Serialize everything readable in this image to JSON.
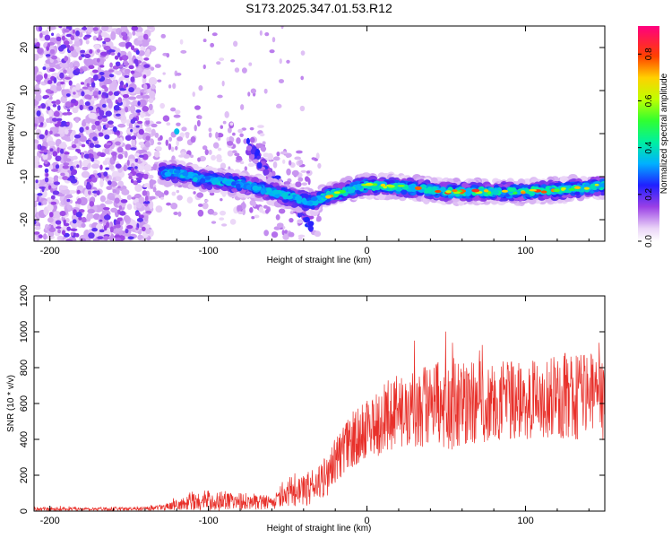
{
  "title": "S173.2025.347.01.53.R12",
  "chart_data": [
    {
      "type": "heatmap",
      "name": "spectrogram",
      "xlabel": "Height of straight line (km)",
      "ylabel": "Frequency (Hz)",
      "xlim": [
        -210,
        150
      ],
      "ylim": [
        -25,
        25
      ],
      "xticks": [
        -200,
        -100,
        0,
        100
      ],
      "yticks": [
        -20,
        -10,
        0,
        10,
        20
      ],
      "ridge": {
        "description_points_x": [
          -125,
          -115,
          -105,
          -95,
          -85,
          -75,
          -65,
          -55,
          -45,
          -35,
          -25,
          -10,
          0,
          25,
          50,
          75,
          100,
          125,
          150
        ],
        "frequency_hz": [
          -9,
          -9.5,
          -10.5,
          -11,
          -11.5,
          -12,
          -13,
          -14,
          -15,
          -16,
          -14.5,
          -13,
          -12,
          -12.5,
          -13.5,
          -13.5,
          -13.5,
          -13,
          -12
        ]
      },
      "colorbar": {
        "label": "Normalized spectral amplitude",
        "range": [
          0.0,
          0.92
        ],
        "ticks": [
          0.0,
          0.2,
          0.4,
          0.6,
          0.8
        ],
        "tick_labels": [
          "0.0",
          "0.2",
          "0.4",
          "0.6",
          "0.8"
        ],
        "colors": [
          "#ffffff",
          "#e6c8f5",
          "#8a2be2",
          "#0000ff",
          "#00c8ff",
          "#00ff80",
          "#80ff00",
          "#ffff00",
          "#ff8000",
          "#ff0000",
          "#ff0080"
        ]
      }
    },
    {
      "type": "line",
      "name": "snr",
      "xlabel": "Height of straight line (km)",
      "ylabel": "SNR (10 * v/v)",
      "xlim": [
        -210,
        150
      ],
      "ylim": [
        0,
        1200
      ],
      "xticks": [
        -200,
        -100,
        0,
        100
      ],
      "yticks": [
        0,
        200,
        400,
        600,
        800,
        1000,
        1200
      ],
      "color": "#e8302a",
      "envelope_x": [
        -210,
        -150,
        -125,
        -110,
        -100,
        -80,
        -60,
        -50,
        -40,
        -30,
        -25,
        -20,
        -15,
        -10,
        0,
        20,
        40,
        60,
        80,
        100,
        120,
        135,
        150
      ],
      "envelope_mean": [
        12,
        12,
        25,
        50,
        60,
        55,
        50,
        80,
        110,
        160,
        200,
        280,
        340,
        380,
        460,
        560,
        580,
        600,
        610,
        610,
        640,
        660,
        620
      ],
      "envelope_spread": [
        10,
        10,
        20,
        45,
        60,
        50,
        40,
        60,
        90,
        110,
        120,
        130,
        140,
        150,
        170,
        220,
        250,
        250,
        230,
        220,
        230,
        280,
        250
      ]
    }
  ]
}
